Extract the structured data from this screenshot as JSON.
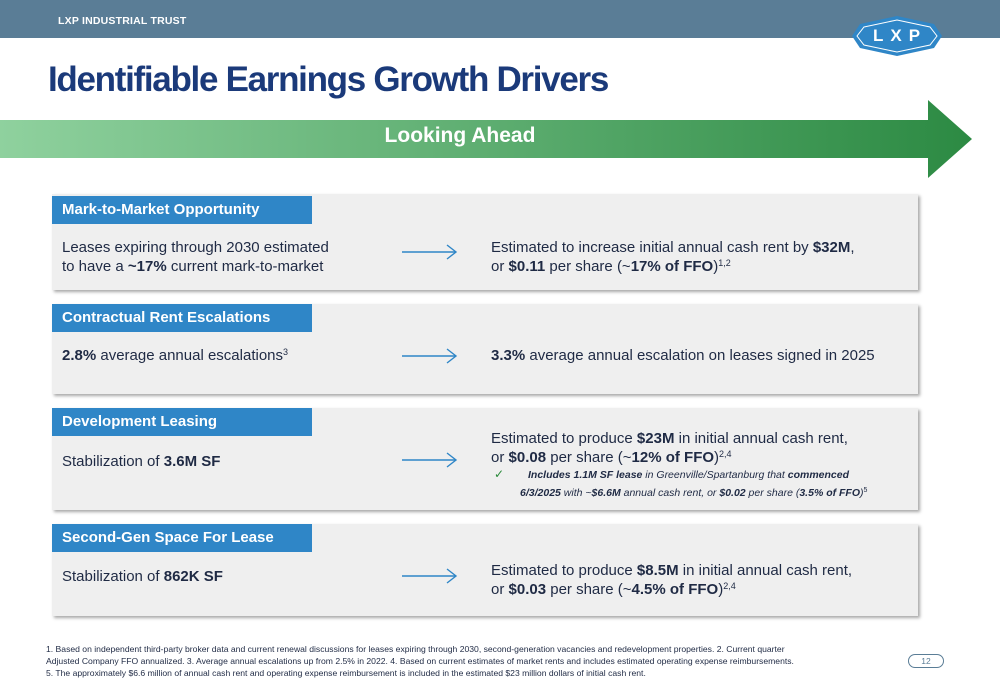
{
  "header": {
    "company": "LXP INDUSTRIAL TRUST",
    "logo_text": "LXP",
    "logo_color": "#2f86c7"
  },
  "title": "Identifiable Earnings Growth Drivers",
  "banner": {
    "label": "Looking Ahead",
    "gradient_start": "#8fd19e",
    "gradient_end": "#2c8a43"
  },
  "cards": [
    {
      "tab": "Mark-to-Market Opportunity",
      "left_line1": "Leases expiring through 2030 estimated",
      "left_line2_pre": "to have a ",
      "left_line2_bold": "~17%",
      "left_line2_post": " current mark-to-market",
      "right_line1_pre": "Estimated to increase initial annual cash rent by ",
      "right_line1_bold": "$32M",
      "right_line1_post": ",",
      "right_line2_pre": "or ",
      "right_line2_bold1": "$0.11",
      "right_line2_mid": " per share (~",
      "right_line2_bold2": "17% of FFO",
      "right_line2_post": ")",
      "right_sup": "1,2"
    },
    {
      "tab": "Contractual Rent Escalations",
      "left_bold": "2.8%",
      "left_post": " average annual escalations",
      "left_sup": "3",
      "right_bold": "3.3%",
      "right_post": " average annual escalation on leases signed in 2025"
    },
    {
      "tab": "Development Leasing",
      "left_pre": "Stabilization of ",
      "left_bold": "3.6M SF",
      "right_line1_pre": "Estimated to produce ",
      "right_line1_bold": "$23M",
      "right_line1_post": " in initial annual cash rent,",
      "right_line2_pre": "or ",
      "right_line2_bold1": "$0.08",
      "right_line2_mid": " per share (~",
      "right_line2_bold2": "12% of FFO",
      "right_line2_post": ")",
      "right_sup": "2,4",
      "note": {
        "check": "✓",
        "b1": "Includes 1.1M SF lease",
        "t1": " in Greenville/Spartanburg that ",
        "b2": "commenced",
        "b3": "6/3/2025",
        "t2": " with ~",
        "b4": "$6.6M",
        "t3": " annual cash rent, or ",
        "b5": "$0.02",
        "t4": " per share (",
        "b6": "3.5% of FFO",
        "t5": ")",
        "sup": "5"
      }
    },
    {
      "tab": "Second-Gen Space For Lease",
      "left_pre": "Stabilization of ",
      "left_bold": "862K SF",
      "right_line1_pre": "Estimated to produce ",
      "right_line1_bold": "$8.5M",
      "right_line1_post": " in initial annual cash rent,",
      "right_line2_pre": "or ",
      "right_line2_bold1": "$0.03",
      "right_line2_mid": " per share (~",
      "right_line2_bold2": "4.5% of FFO",
      "right_line2_post": ")",
      "right_sup": "2,4"
    }
  ],
  "footnotes": {
    "line1": "1. Based on independent third-party broker data and current renewal discussions for leases expiring through 2030, second-generation vacancies and redevelopment properties. 2. Current quarter",
    "line2": "Adjusted Company FFO annualized. 3. Average annual escalations up from 2.5% in 2022. 4. Based on current estimates of market rents and includes estimated operating expense reimbursements.",
    "line3": "5. The approximately $6.6 million of annual cash rent and operating expense reimbursement is included in the estimated $23 million dollars of initial cash rent."
  },
  "page_number": "12",
  "colors": {
    "header_bar": "#5a7d96",
    "title": "#1b3a7a",
    "tab": "#2f86c7",
    "card_bg": "#efefef",
    "arrow": "#2f86c7"
  }
}
